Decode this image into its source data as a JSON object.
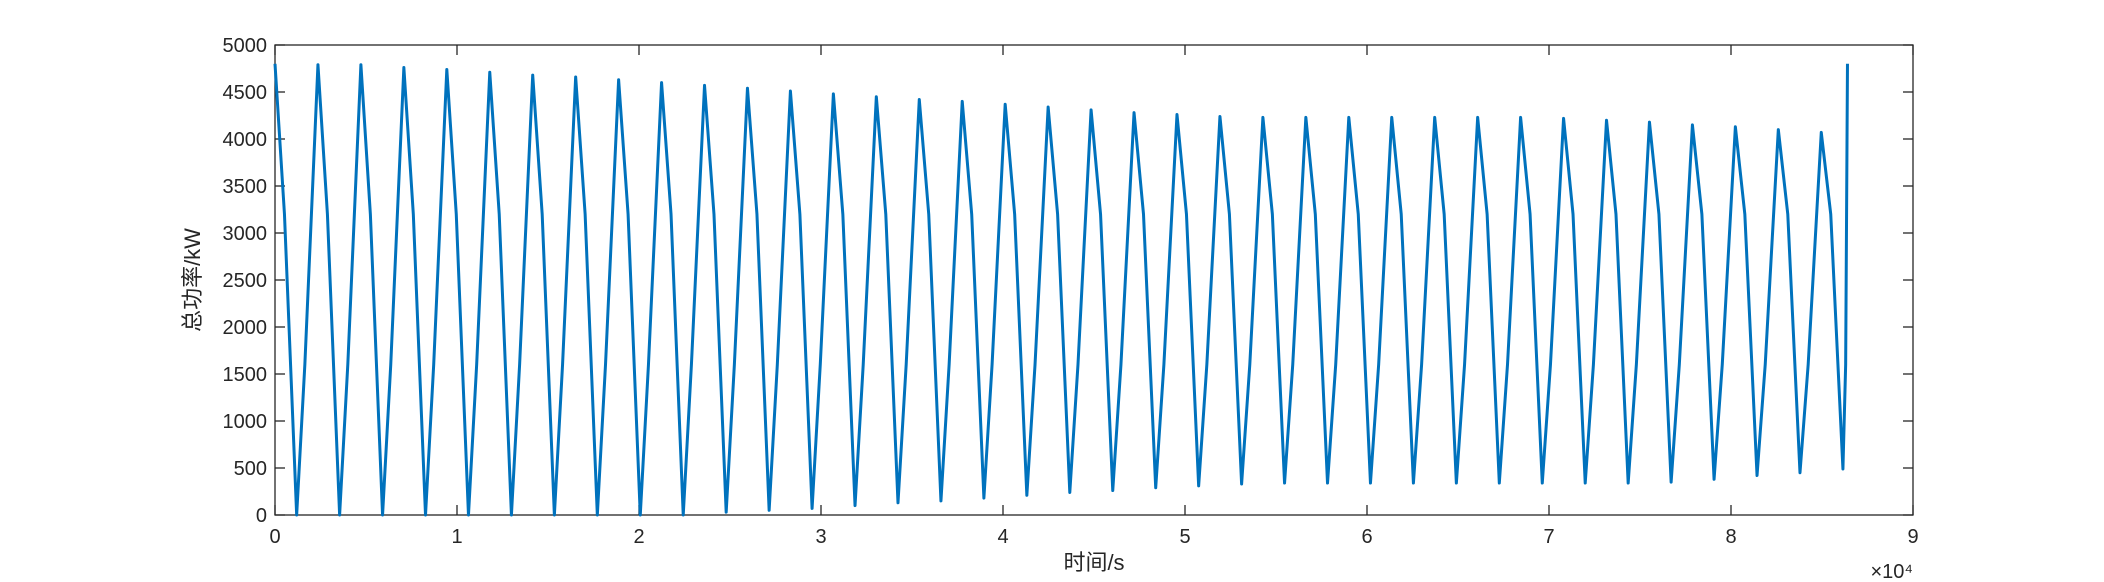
{
  "chart_data": {
    "type": "line",
    "xlabel": "时间/s",
    "ylabel": "总功率/kW",
    "x_exponent": "×10⁴",
    "x": [
      0,
      520,
      1190,
      1640,
      2360,
      2880,
      3550,
      4000,
      4720,
      5240,
      5910,
      6360,
      7080,
      7600,
      8270,
      8720,
      9440,
      9960,
      10630,
      11080,
      11800,
      12320,
      12990,
      13440,
      14160,
      14680,
      15350,
      15800,
      16520,
      17040,
      17710,
      18160,
      18880,
      19400,
      20070,
      20520,
      21240,
      21760,
      22430,
      22880,
      23600,
      24120,
      24790,
      25240,
      25960,
      26480,
      27150,
      27600,
      28320,
      28840,
      29510,
      29960,
      30680,
      31200,
      31870,
      32320,
      33040,
      33560,
      34230,
      34680,
      35400,
      35920,
      36590,
      37040,
      37760,
      38280,
      38950,
      39400,
      40120,
      40640,
      41310,
      41760,
      42480,
      43000,
      43670,
      44120,
      44840,
      45360,
      46030,
      46480,
      47200,
      47720,
      48390,
      48840,
      49560,
      50080,
      50750,
      51200,
      51920,
      52440,
      53110,
      53560,
      54280,
      54800,
      55470,
      55920,
      56640,
      57160,
      57830,
      58280,
      59000,
      59520,
      60190,
      60640,
      61360,
      61880,
      62550,
      63000,
      63720,
      64240,
      64910,
      65360,
      66080,
      66600,
      67270,
      67720,
      68440,
      68960,
      69630,
      70080,
      70800,
      71320,
      71990,
      72440,
      73160,
      73680,
      74350,
      74800,
      75520,
      76040,
      76710,
      77160,
      77880,
      78400,
      79070,
      79520,
      80240,
      80760,
      81430,
      81880,
      82600,
      83120,
      83790,
      84240,
      84960,
      85480,
      86150,
      86300,
      86400
    ],
    "series": [
      {
        "color": "#0072bd",
        "values": [
          4800,
          3200,
          0,
          1600,
          4790,
          3200,
          0,
          1600,
          4790,
          3200,
          0,
          1600,
          4760,
          3200,
          0,
          1600,
          4740,
          3200,
          0,
          1600,
          4710,
          3200,
          0,
          1600,
          4680,
          3200,
          0,
          1600,
          4660,
          3200,
          0,
          1600,
          4630,
          3200,
          0,
          1600,
          4600,
          3200,
          0,
          1600,
          4570,
          3200,
          30,
          1600,
          4540,
          3200,
          50,
          1600,
          4510,
          3200,
          70,
          1600,
          4480,
          3200,
          100,
          1600,
          4450,
          3200,
          130,
          1600,
          4420,
          3200,
          150,
          1600,
          4400,
          3200,
          180,
          1600,
          4370,
          3200,
          210,
          1600,
          4340,
          3200,
          240,
          1600,
          4310,
          3200,
          260,
          1600,
          4280,
          3200,
          290,
          1600,
          4260,
          3200,
          310,
          1600,
          4240,
          3200,
          330,
          1600,
          4230,
          3200,
          340,
          1600,
          4230,
          3200,
          340,
          1600,
          4230,
          3200,
          340,
          1600,
          4230,
          3200,
          340,
          1600,
          4230,
          3200,
          340,
          1600,
          4230,
          3200,
          340,
          1600,
          4230,
          3200,
          340,
          1600,
          4220,
          3200,
          340,
          1600,
          4200,
          3200,
          340,
          1600,
          4180,
          3200,
          350,
          1600,
          4150,
          3200,
          380,
          1600,
          4130,
          3200,
          420,
          1600,
          4100,
          3200,
          450,
          1600,
          4070,
          3200,
          490,
          1600,
          4800
        ]
      }
    ],
    "xlim": [
      0,
      90000
    ],
    "xticks": [
      {
        "value": 0,
        "label": "0"
      },
      {
        "value": 10000,
        "label": "1"
      },
      {
        "value": 20000,
        "label": "2"
      },
      {
        "value": 30000,
        "label": "3"
      },
      {
        "value": 40000,
        "label": "4"
      },
      {
        "value": 50000,
        "label": "5"
      },
      {
        "value": 60000,
        "label": "6"
      },
      {
        "value": 70000,
        "label": "7"
      },
      {
        "value": 80000,
        "label": "8"
      },
      {
        "value": 90000,
        "label": "9"
      }
    ],
    "ylim": [
      0,
      5000
    ],
    "yticks": [
      0,
      500,
      1000,
      1500,
      2000,
      2500,
      3000,
      3500,
      4000,
      4500,
      5000
    ]
  }
}
